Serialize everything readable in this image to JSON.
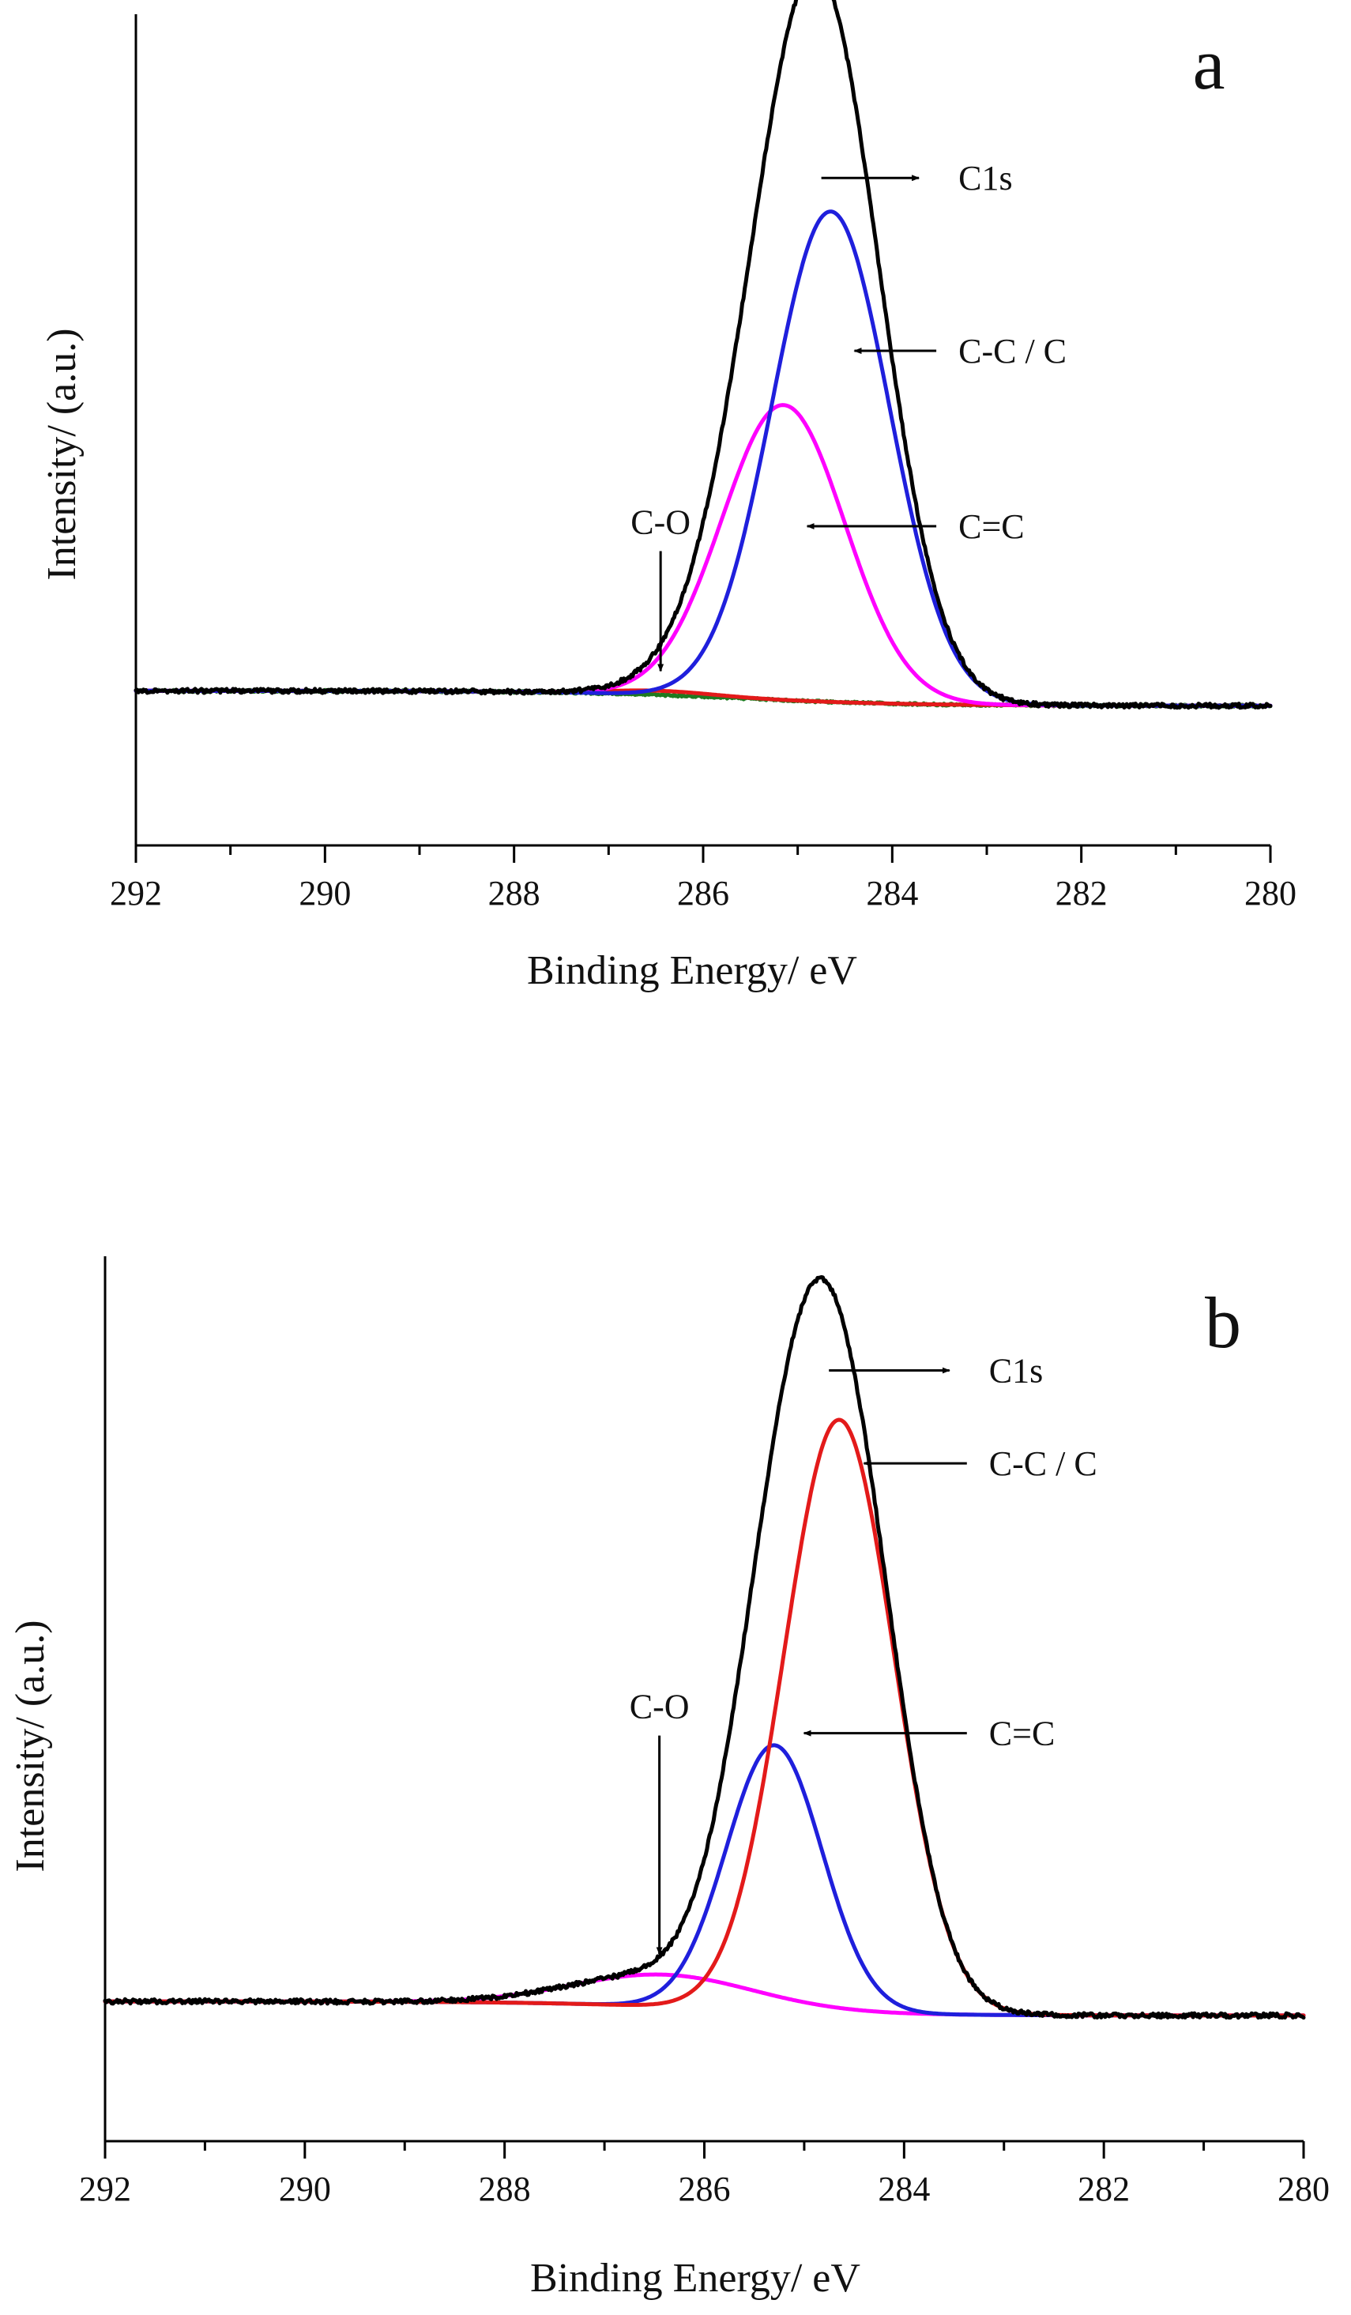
{
  "figure": {
    "colors": {
      "axis": "#000000",
      "black": "#000000",
      "blue": "#1f1fdc",
      "magenta": "#ff00ff",
      "red": "#e31a1a",
      "green": "#1f7a1f"
    }
  },
  "chart_data": [
    {
      "type": "line",
      "panel_label": "a",
      "xlabel": "Binding Energy/ eV",
      "ylabel": "Intensity/ (a.u.)",
      "xlim": [
        292,
        280
      ],
      "ylim": [
        0,
        100
      ],
      "x_ticks": [
        292,
        290,
        288,
        286,
        284,
        282,
        280
      ],
      "x_tick_labels": [
        "292",
        "290",
        "288",
        "286",
        "284",
        "282",
        "280"
      ],
      "y_ticks_shown": false,
      "baseline": {
        "left": 18.6,
        "right": 16.8,
        "step_center": 285.6,
        "step_width": 0.9
      },
      "series": [
        {
          "name": "C1s",
          "color": "#000000",
          "sum_of": [
            "C-C / C",
            "C=C",
            "C-O"
          ],
          "noise": 0.25,
          "linewidth": 5
        },
        {
          "name": "C-C / C",
          "color": "#1f1fdc",
          "peak": {
            "center": 284.65,
            "height": 59.0,
            "sigma": 0.62
          },
          "linewidth": 5
        },
        {
          "name": "C=C",
          "color": "#ff00ff",
          "peak": {
            "center": 285.15,
            "height": 35.5,
            "sigma": 0.65
          },
          "linewidth": 5
        },
        {
          "name": "C-O",
          "color": "#e31a1a",
          "peak": {
            "center": 286.45,
            "height": 0.5,
            "sigma": 0.55
          },
          "linewidth": 5
        },
        {
          "name": "Background",
          "color": "#1f7a1f",
          "baseline_only": true,
          "noise": 0.12,
          "linewidth": 5
        }
      ],
      "annotations": [
        {
          "text": "C1s",
          "target": [
            284.8,
            80.3
          ],
          "label_at": [
            283.3,
            80.3
          ],
          "direction": "right"
        },
        {
          "text": "C-C / C",
          "target": [
            284.45,
            59.5
          ],
          "label_at": [
            283.3,
            59.5
          ],
          "direction": "left"
        },
        {
          "text": "C=C",
          "target": [
            284.95,
            38.4
          ],
          "label_at": [
            283.3,
            38.4
          ],
          "direction": "left"
        },
        {
          "text": "C-O",
          "target": [
            286.45,
            20.4
          ],
          "label_at": [
            286.45,
            37.5
          ],
          "direction": "down"
        }
      ]
    },
    {
      "type": "line",
      "panel_label": "b",
      "xlabel": "Binding Energy/ eV",
      "ylabel": "Intensity/ (a.u.)",
      "xlim": [
        292,
        280
      ],
      "ylim": [
        0,
        100
      ],
      "x_ticks": [
        292,
        290,
        288,
        286,
        284,
        282,
        280
      ],
      "x_tick_labels": [
        "292",
        "290",
        "288",
        "286",
        "284",
        "282",
        "280"
      ],
      "y_ticks_shown": false,
      "baseline": {
        "left": 15.8,
        "right": 14.2,
        "step_center": 285.9,
        "step_width": 0.9
      },
      "series": [
        {
          "name": "C1s",
          "color": "#000000",
          "sum_of": [
            "C-C / C",
            "C=C",
            "C-O"
          ],
          "noise": 0.25,
          "linewidth": 5
        },
        {
          "name": "C-C / C",
          "color": "#e31a1a",
          "peak": {
            "center": 284.65,
            "height": 67.0,
            "sigma": 0.55
          },
          "linewidth": 5
        },
        {
          "name": "C=C",
          "color": "#1f1fdc",
          "peak": {
            "center": 285.3,
            "height": 30.0,
            "sigma": 0.48
          },
          "linewidth": 5
        },
        {
          "name": "C-O",
          "color": "#ff00ff",
          "peak": {
            "center": 286.4,
            "height": 3.6,
            "sigma": 0.9
          },
          "linewidth": 5
        }
      ],
      "annotations": [
        {
          "text": "C1s",
          "target": [
            284.8,
            87.1
          ],
          "label_at": [
            283.15,
            87.1
          ],
          "direction": "right"
        },
        {
          "text": "C-C / C",
          "target": [
            284.45,
            76.6
          ],
          "label_at": [
            283.15,
            76.6
          ],
          "direction": "left"
        },
        {
          "text": "C=C",
          "target": [
            285.05,
            46.1
          ],
          "label_at": [
            283.15,
            46.1
          ],
          "direction": "left"
        },
        {
          "text": "C-O",
          "target": [
            286.45,
            20.6
          ],
          "label_at": [
            286.45,
            47.8
          ],
          "direction": "down"
        }
      ]
    }
  ]
}
